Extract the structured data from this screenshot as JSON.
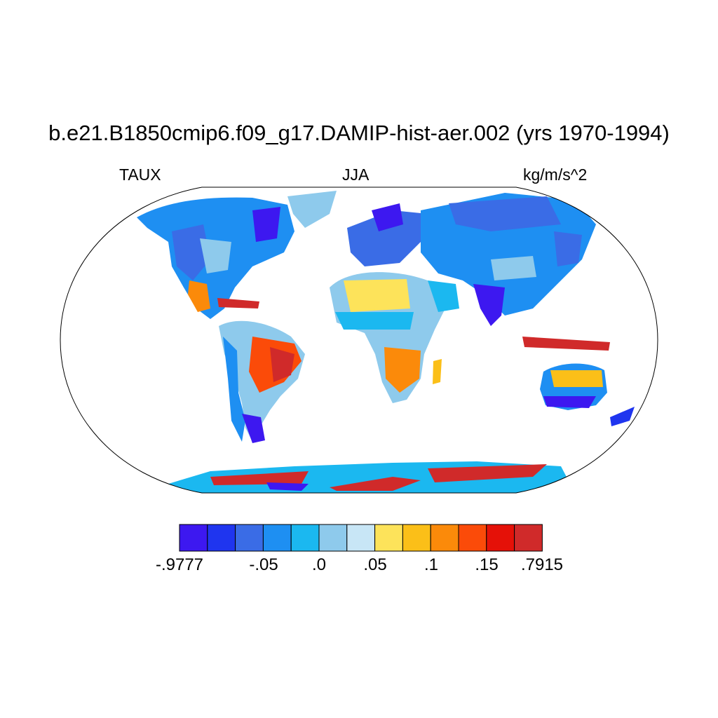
{
  "title": "b.e21.B1850cmip6.f09_g17.DAMIP-hist-aer.002 (yrs 1970-1994)",
  "variable": "TAUX",
  "season": "JJA",
  "units": "kg/m/s^2",
  "colorbar": {
    "colors": [
      "#3d18f0",
      "#1f35ef",
      "#3a6ce6",
      "#1e8ff2",
      "#1bb8f0",
      "#8ecaec",
      "#c8e6f6",
      "#fde35a",
      "#fbbf18",
      "#fb8a0a",
      "#fb4b09",
      "#e51108",
      "#d02a2a"
    ],
    "labels": [
      "-.9777",
      "-.05",
      ".0",
      ".05",
      ".1",
      ".15",
      ".7915"
    ]
  }
}
